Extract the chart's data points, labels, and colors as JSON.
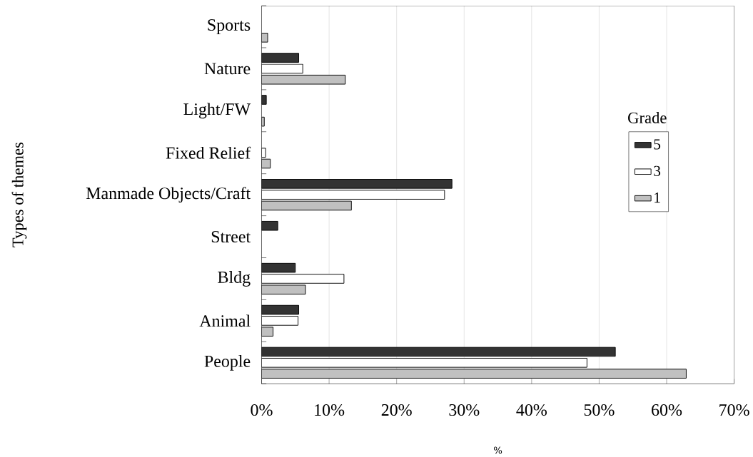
{
  "chart_data": {
    "type": "bar",
    "orientation": "horizontal",
    "ylabel": "Types of themes",
    "xlabel": "%",
    "legend_title": "Grade",
    "legend": "right",
    "grid": "x",
    "categories": [
      "Sports",
      "Nature",
      "Light/FW",
      "Fixed Relief",
      "Manmade Objects/Craft",
      "Street",
      "Bldg",
      "Animal",
      "People"
    ],
    "xlim": [
      0,
      70
    ],
    "xticks": [
      {
        "value": 0,
        "label": "0%"
      },
      {
        "value": 10,
        "label": "10%"
      },
      {
        "value": 20,
        "label": "20%"
      },
      {
        "value": 30,
        "label": "30%"
      },
      {
        "value": 40,
        "label": "40%"
      },
      {
        "value": 50,
        "label": "50%"
      },
      {
        "value": 60,
        "label": "60%"
      },
      {
        "value": 70,
        "label": "70%"
      }
    ],
    "series": [
      {
        "name": "5",
        "color": "#333333",
        "values": [
          null,
          5.5,
          0.7,
          null,
          28.2,
          2.4,
          5.0,
          5.5,
          52.4
        ]
      },
      {
        "name": "3",
        "color": "#ffffff",
        "values": [
          null,
          6.1,
          null,
          0.6,
          27.1,
          null,
          12.2,
          5.4,
          48.2
        ]
      },
      {
        "name": "1",
        "color": "#c0c0c0",
        "values": [
          0.9,
          12.4,
          0.4,
          1.3,
          13.3,
          null,
          6.5,
          1.7,
          62.9
        ]
      }
    ]
  }
}
